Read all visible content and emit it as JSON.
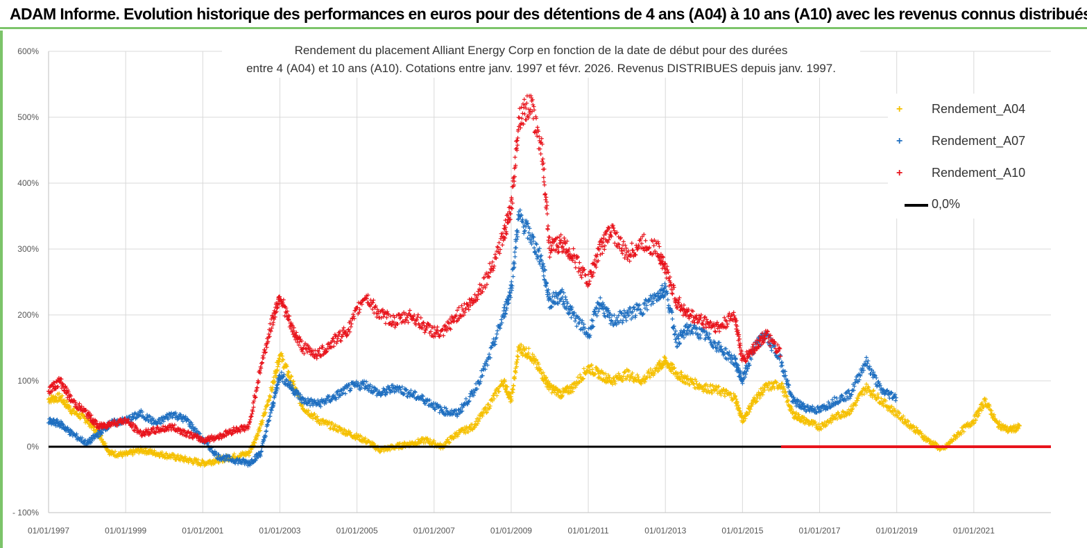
{
  "banner": {
    "title": "ADAM Informe. Evolution historique des performances en euros pour des détentions de 4 ans (A04) à 10 ans (A10) avec les revenus connus distribués"
  },
  "chart_data": {
    "type": "scatter",
    "title_line1": "Rendement du placement Alliant Energy Corp en fonction de la date de début pour des durées",
    "title_line2": "entre 4 (A04) et 10 ans (A10).  Cotations entre janv. 1997 et févr. 2026. Revenus DISTRIBUES depuis janv. 1997.",
    "ylim": [
      -100,
      600
    ],
    "y_ticks": [
      "- 100%",
      "0%",
      "100%",
      "200%",
      "300%",
      "400%",
      "500%",
      "600%"
    ],
    "y_tick_values": [
      -100,
      0,
      100,
      200,
      300,
      400,
      500,
      600
    ],
    "xlim": [
      1997.0,
      2023.0
    ],
    "x_ticks": [
      "01/01/1997",
      "01/01/1999",
      "01/01/2001",
      "01/01/2003",
      "01/01/2005",
      "01/01/2007",
      "01/01/2009",
      "01/01/2011",
      "01/01/2013",
      "01/01/2015",
      "01/01/2017",
      "01/01/2019",
      "01/01/2021"
    ],
    "x_tick_values": [
      1997,
      1999,
      2001,
      2003,
      2005,
      2007,
      2009,
      2011,
      2013,
      2015,
      2017,
      2019,
      2021
    ],
    "series": [
      {
        "name": "Rendement_A04",
        "color": "#f5c000",
        "x": [
          1997.0,
          1997.3,
          1997.6,
          1998.0,
          1998.3,
          1998.6,
          1999.0,
          1999.4,
          1999.8,
          2000.2,
          2000.6,
          2001.0,
          2001.4,
          2001.8,
          2002.2,
          2002.5,
          2002.8,
          2003.0,
          2003.3,
          2003.6,
          2004.0,
          2004.4,
          2004.8,
          2005.2,
          2005.6,
          2006.0,
          2006.4,
          2006.8,
          2007.2,
          2007.6,
          2008.0,
          2008.4,
          2008.8,
          2009.0,
          2009.2,
          2009.5,
          2009.8,
          2010.0,
          2010.3,
          2010.6,
          2011.0,
          2011.3,
          2011.6,
          2012.0,
          2012.4,
          2012.8,
          2013.0,
          2013.3,
          2013.6,
          2014.0,
          2014.4,
          2014.8,
          2015.0,
          2015.3,
          2015.6,
          2016.0,
          2016.3,
          2016.6,
          2017.0,
          2017.4,
          2017.8,
          2018.2,
          2018.6,
          2019.0,
          2019.4,
          2019.8,
          2020.2,
          2020.6,
          2021.0,
          2021.3,
          2021.6,
          2021.9,
          2022.2
        ],
        "values": [
          72,
          75,
          55,
          40,
          20,
          -10,
          -12,
          -5,
          -10,
          -15,
          -20,
          -25,
          -20,
          -15,
          -10,
          30,
          90,
          140,
          100,
          60,
          40,
          30,
          20,
          10,
          -5,
          0,
          5,
          10,
          0,
          20,
          30,
          60,
          100,
          70,
          150,
          140,
          110,
          90,
          80,
          90,
          120,
          110,
          100,
          110,
          100,
          120,
          130,
          110,
          100,
          90,
          85,
          75,
          40,
          70,
          90,
          95,
          50,
          40,
          30,
          45,
          55,
          90,
          70,
          50,
          30,
          10,
          -5,
          20,
          40,
          70,
          35,
          25,
          30
        ]
      },
      {
        "name": "Rendement_A07",
        "color": "#1f6fc0",
        "x": [
          1997.0,
          1997.3,
          1997.6,
          1998.0,
          1998.3,
          1998.6,
          1999.0,
          1999.4,
          1999.8,
          2000.2,
          2000.6,
          2001.0,
          2001.4,
          2001.8,
          2002.2,
          2002.5,
          2002.8,
          2003.0,
          2003.3,
          2003.6,
          2004.0,
          2004.4,
          2004.8,
          2005.2,
          2005.6,
          2006.0,
          2006.4,
          2006.8,
          2007.2,
          2007.6,
          2008.0,
          2008.4,
          2008.8,
          2009.0,
          2009.2,
          2009.5,
          2009.8,
          2010.0,
          2010.3,
          2010.6,
          2011.0,
          2011.3,
          2011.6,
          2012.0,
          2012.4,
          2012.8,
          2013.0,
          2013.3,
          2013.6,
          2014.0,
          2014.4,
          2014.8,
          2015.0,
          2015.3,
          2015.6,
          2016.0,
          2016.3,
          2016.6,
          2017.0,
          2017.4,
          2017.8,
          2018.2,
          2018.6,
          2019.0
        ],
        "values": [
          38,
          35,
          20,
          5,
          20,
          35,
          40,
          50,
          35,
          50,
          40,
          10,
          -15,
          -20,
          -25,
          -10,
          60,
          110,
          90,
          70,
          65,
          75,
          90,
          95,
          80,
          90,
          80,
          70,
          55,
          50,
          80,
          130,
          200,
          240,
          350,
          320,
          280,
          220,
          230,
          200,
          170,
          220,
          190,
          200,
          210,
          230,
          240,
          160,
          180,
          170,
          150,
          130,
          100,
          150,
          170,
          130,
          70,
          60,
          55,
          70,
          80,
          130,
          85,
          75
        ]
      },
      {
        "name": "Rendement_A10",
        "color": "#e8141c",
        "x": [
          1997.0,
          1997.3,
          1997.6,
          1998.0,
          1998.3,
          1998.6,
          1999.0,
          1999.4,
          1999.8,
          2000.2,
          2000.6,
          2001.0,
          2001.4,
          2001.8,
          2002.2,
          2002.5,
          2002.8,
          2003.0,
          2003.3,
          2003.6,
          2004.0,
          2004.4,
          2004.8,
          2005.2,
          2005.6,
          2006.0,
          2006.4,
          2006.8,
          2007.2,
          2007.6,
          2008.0,
          2008.4,
          2008.8,
          2009.0,
          2009.2,
          2009.5,
          2009.8,
          2010.0,
          2010.3,
          2010.6,
          2011.0,
          2011.3,
          2011.6,
          2012.0,
          2012.4,
          2012.8,
          2013.0,
          2013.3,
          2013.6,
          2014.0,
          2014.4,
          2014.8,
          2015.0,
          2015.3,
          2015.6,
          2016.0
        ],
        "values": [
          85,
          100,
          70,
          50,
          30,
          35,
          40,
          20,
          25,
          30,
          20,
          10,
          15,
          25,
          30,
          120,
          190,
          230,
          180,
          150,
          140,
          160,
          180,
          230,
          200,
          190,
          200,
          180,
          170,
          200,
          220,
          260,
          320,
          360,
          500,
          520,
          450,
          300,
          310,
          290,
          250,
          300,
          330,
          290,
          310,
          300,
          270,
          220,
          200,
          190,
          180,
          200,
          130,
          150,
          170,
          140
        ]
      },
      {
        "name": "0,0%",
        "color": "#000000",
        "x": [
          1997.0,
          2016.0
        ],
        "values": [
          0,
          0
        ]
      }
    ],
    "zero_segment_a10": {
      "x": [
        2016.0,
        2023.0
      ],
      "value": 0
    },
    "legend": [
      "Rendement_A04",
      "Rendement_A07",
      "Rendement_A10",
      "0,0%"
    ],
    "legend_position": "right"
  }
}
